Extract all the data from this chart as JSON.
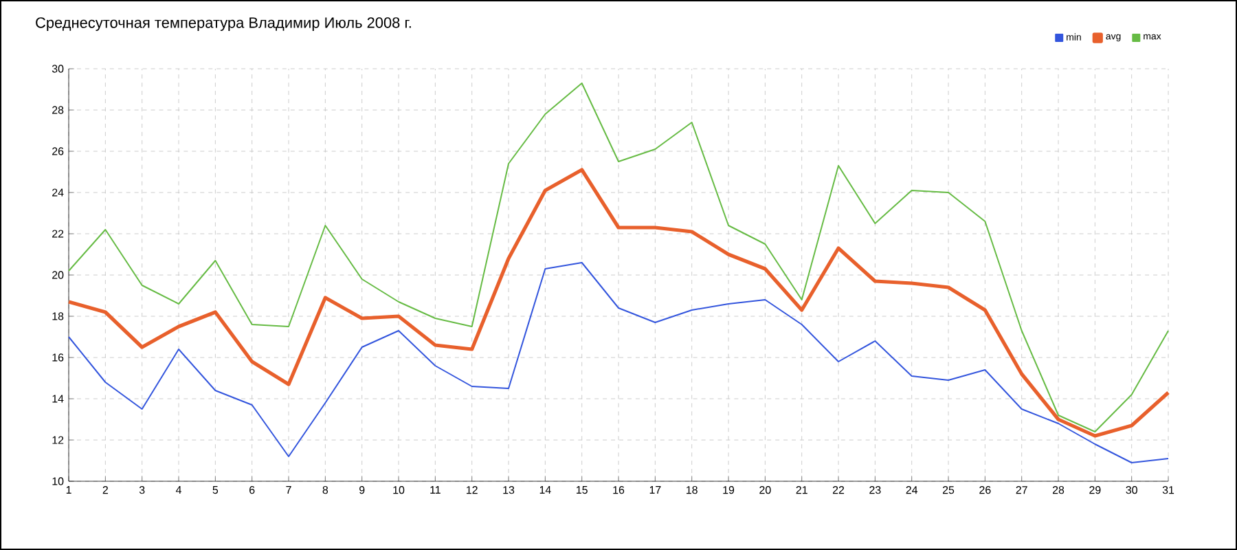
{
  "chart_data": {
    "type": "line",
    "title": "Среднесуточная температура Владимир  Июль 2008 г.",
    "categories": [
      "1",
      "2",
      "3",
      "4",
      "5",
      "6",
      "7",
      "8",
      "9",
      "10",
      "11",
      "12",
      "13",
      "14",
      "15",
      "16",
      "17",
      "18",
      "19",
      "20",
      "21",
      "22",
      "23",
      "24",
      "25",
      "26",
      "27",
      "28",
      "29",
      "30",
      "31"
    ],
    "series": [
      {
        "name": "min",
        "color": "#3355dd",
        "values": [
          17.0,
          14.8,
          13.5,
          16.4,
          14.4,
          13.7,
          11.2,
          13.8,
          16.5,
          17.3,
          15.6,
          14.6,
          14.5,
          20.3,
          20.6,
          18.4,
          17.7,
          18.3,
          18.6,
          18.8,
          17.6,
          15.8,
          16.8,
          15.1,
          14.9,
          15.4,
          13.5,
          12.8,
          11.8,
          10.9,
          11.1
        ]
      },
      {
        "name": "avg",
        "color": "#e8602c",
        "values": [
          18.7,
          18.2,
          16.5,
          17.5,
          18.2,
          15.8,
          14.7,
          18.9,
          17.9,
          18.0,
          16.6,
          16.4,
          20.8,
          24.1,
          25.1,
          22.3,
          22.3,
          22.1,
          21.0,
          20.3,
          18.3,
          21.3,
          19.7,
          19.6,
          19.4,
          18.3,
          15.2,
          13.0,
          12.2,
          12.7,
          14.3
        ]
      },
      {
        "name": "max",
        "color": "#66bb44",
        "values": [
          20.2,
          22.2,
          19.5,
          18.6,
          20.7,
          17.6,
          17.5,
          22.4,
          19.8,
          18.7,
          17.9,
          17.5,
          25.4,
          27.8,
          29.3,
          25.5,
          26.1,
          27.4,
          22.4,
          21.5,
          18.8,
          25.3,
          22.5,
          24.1,
          24.0,
          22.6,
          17.3,
          13.2,
          12.4,
          14.2,
          17.3
        ]
      }
    ],
    "ylim": [
      10,
      30
    ],
    "yticks": [
      10,
      12,
      14,
      16,
      18,
      20,
      22,
      24,
      26,
      28,
      30
    ],
    "grid": true,
    "legend": "top right"
  }
}
